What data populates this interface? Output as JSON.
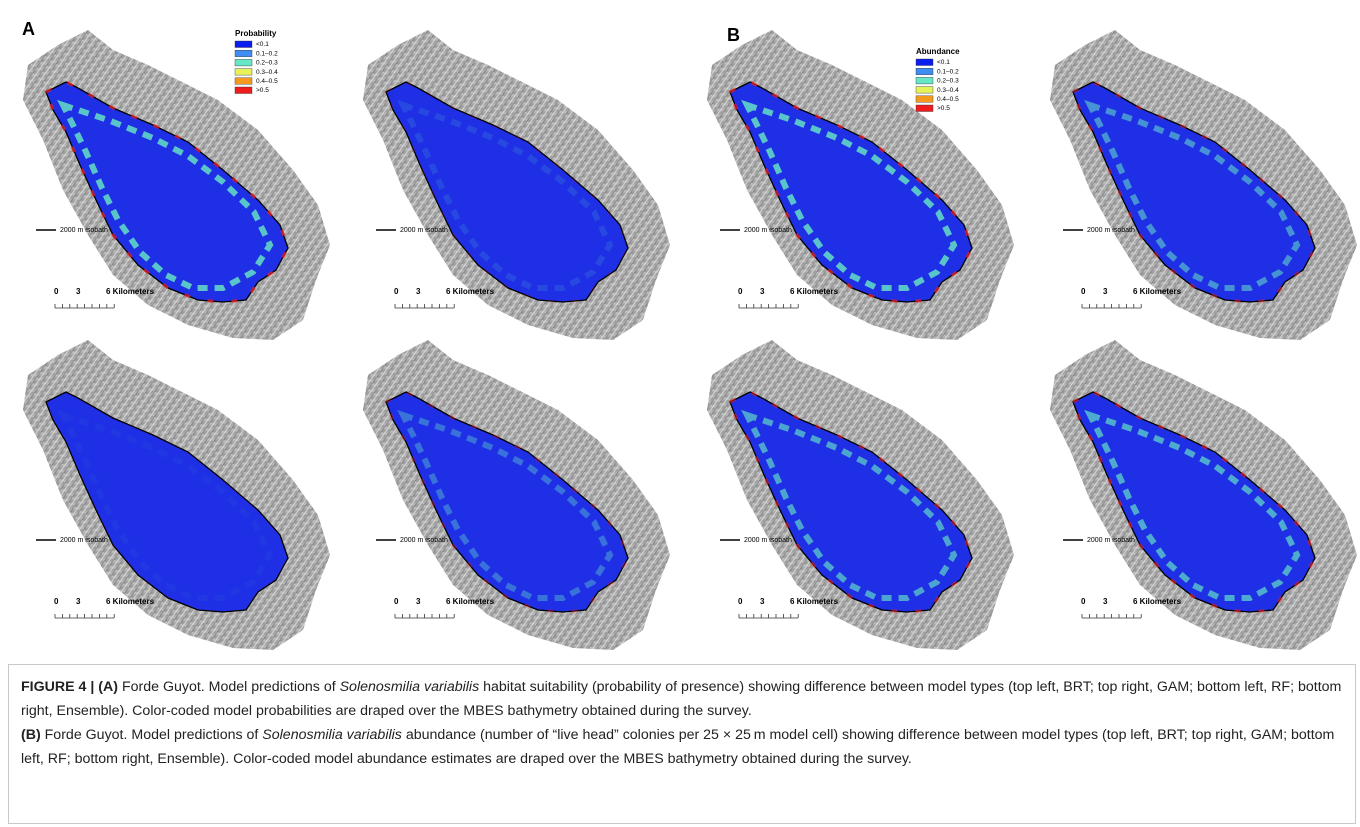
{
  "figure": {
    "groups": [
      {
        "label": "A",
        "legend": {
          "title": "Probability",
          "items": [
            {
              "label": "<0.1",
              "color": "#0a1cf0"
            },
            {
              "label": "0.1–0.2",
              "color": "#3f8cf2"
            },
            {
              "label": "0.2–0.3",
              "color": "#66e8c6"
            },
            {
              "label": "0.3–0.4",
              "color": "#e6f25a"
            },
            {
              "label": "0.4–0.5",
              "color": "#f59a1e"
            },
            {
              "label": ">0.5",
              "color": "#ee1c1c"
            }
          ]
        },
        "panels": [
          {
            "isobath": "2000 m isobath",
            "scale": [
              "0",
              "3",
              "6 Kilometers"
            ]
          },
          {
            "isobath": "2000 m isobath",
            "scale": [
              "0",
              "3",
              "6 Kilometers"
            ]
          },
          {
            "isobath": "2000 m isobath",
            "scale": [
              "0",
              "3",
              "6 Kilometers"
            ]
          },
          {
            "isobath": "2000 m isobath",
            "scale": [
              "0",
              "3",
              "6 Kilometers"
            ]
          }
        ]
      },
      {
        "label": "B",
        "legend": {
          "title": "Abundance",
          "items": [
            {
              "label": "<0.1",
              "color": "#0a1cf0"
            },
            {
              "label": "0.1–0.2",
              "color": "#3f8cf2"
            },
            {
              "label": "0.2–0.3",
              "color": "#66e8c6"
            },
            {
              "label": "0.3–0.4",
              "color": "#e6f25a"
            },
            {
              "label": "0.4–0.5",
              "color": "#f59a1e"
            },
            {
              "label": ">0.5",
              "color": "#ee1c1c"
            }
          ]
        },
        "panels": [
          {
            "isobath": "2000 m isobath",
            "scale": [
              "0",
              "3",
              "6 Kilometers"
            ]
          },
          {
            "isobath": "2000 m isobath",
            "scale": [
              "0",
              "3",
              "6 Kilometers"
            ]
          },
          {
            "isobath": "2000 m isobath",
            "scale": [
              "0",
              "3",
              "6 Kilometers"
            ]
          },
          {
            "isobath": "2000 m isobath",
            "scale": [
              "0",
              "3",
              "6 Kilometers"
            ]
          }
        ]
      }
    ]
  },
  "caption": {
    "paragraphs": [
      [
        {
          "text": "FIGURE 4 | ",
          "bold": true
        },
        {
          "text": "(A)",
          "bold": true
        },
        {
          "text": " Forde Guyot. Model predictions of "
        },
        {
          "text": "Solenosmilia variabilis",
          "italic": true
        },
        {
          "text": " habitat suitability (probability of presence) showing difference between model types (top left, BRT; top right, GAM; bottom left, RF; bottom right, Ensemble). Color-coded model probabilities are draped over the MBES bathymetry obtained during the survey."
        }
      ],
      [
        {
          "text": "(B)",
          "bold": true
        },
        {
          "text": " Forde Guyot. Model predictions of "
        },
        {
          "text": "Solenosmilia variabilis",
          "italic": true
        },
        {
          "text": " abundance (number of “live head” colonies per 25 × 25 m model cell) showing difference between model types (top left, BRT; top right, GAM; bottom left, RF; bottom right, Ensemble). Color-coded model abundance estimates are draped over the MBES bathymetry obtained during the survey."
        }
      ]
    ]
  }
}
